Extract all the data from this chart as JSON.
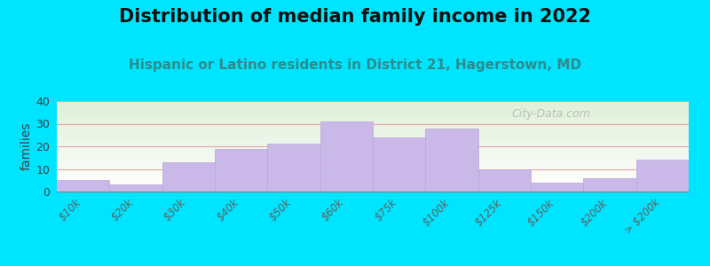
{
  "title": "Distribution of median family income in 2022",
  "subtitle": "Hispanic or Latino residents in District 21, Hagerstown, MD",
  "ylabel": "families",
  "categories": [
    "$10k",
    "$20k",
    "$30k",
    "$40k",
    "$50k",
    "$60k",
    "$75k",
    "$100k",
    "$125k",
    "$150k",
    "$200k",
    "> $200k"
  ],
  "values": [
    5,
    3,
    13,
    19,
    21,
    31,
    24,
    28,
    10,
    4,
    6,
    14
  ],
  "bar_color": "#c9b8e8",
  "bar_edge_color": "#b8a8d8",
  "background_outer": "#00e5ff",
  "background_plot_top": "#dff0d8",
  "background_plot_bottom": "#ffffff",
  "grid_color": "#e8a0a8",
  "ylim": [
    0,
    40
  ],
  "yticks": [
    0,
    10,
    20,
    30,
    40
  ],
  "title_fontsize": 15,
  "subtitle_fontsize": 11,
  "subtitle_color": "#2e8b8b",
  "ylabel_fontsize": 10,
  "watermark": "City-Data.com",
  "watermark_color": "#b0b8b0"
}
